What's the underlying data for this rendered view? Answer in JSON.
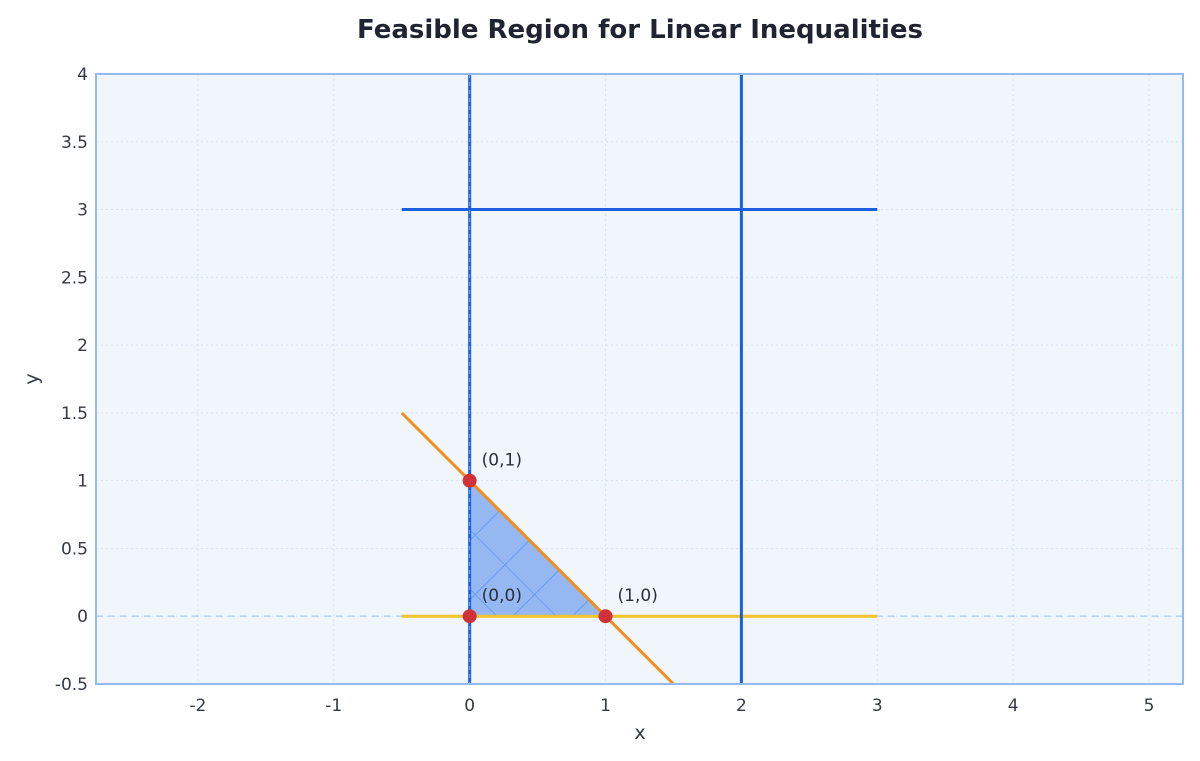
{
  "chart_data": {
    "type": "line",
    "title": "Feasible Region for Linear Inequalities",
    "xlabel": "x",
    "ylabel": "y",
    "xlim": [
      -2.75,
      5.25
    ],
    "ylim": [
      -0.5,
      4
    ],
    "x_ticks": [
      "-2",
      "-1",
      "0",
      "1",
      "2",
      "3",
      "4",
      "5"
    ],
    "y_ticks": [
      "-0.5",
      "0",
      "0.5",
      "1",
      "1.5",
      "2",
      "2.5",
      "3",
      "3.5",
      "4"
    ],
    "grid": true,
    "series": [
      {
        "x": [
          -0.5,
          1.5
        ],
        "y": [
          1.5,
          -0.5
        ],
        "color": "#f28e1c"
      },
      {
        "x": [
          -0.5,
          3
        ],
        "y": [
          0,
          0
        ],
        "color": "#f2c22c"
      },
      {
        "x": [
          0,
          0
        ],
        "y": [
          -0.5,
          4
        ],
        "color": "#1a5fe0"
      },
      {
        "x": [
          2,
          2
        ],
        "y": [
          -0.5,
          4
        ],
        "color": "#1a5fe0"
      },
      {
        "x": [
          -0.5,
          3
        ],
        "y": [
          3,
          3
        ],
        "color": "#1a5fe0"
      }
    ],
    "feasible_region": {
      "vertices": [
        [
          0,
          0
        ],
        [
          1,
          0
        ],
        [
          0,
          1
        ]
      ],
      "fill": "#8fb4f2",
      "hatch": "#5a8ff0"
    },
    "points": [
      {
        "x": 0,
        "y": 1,
        "label": "(0,1)"
      },
      {
        "x": 0,
        "y": 0,
        "label": "(0,0)"
      },
      {
        "x": 1,
        "y": 0,
        "label": "(1,0)"
      }
    ],
    "colors": {
      "plot_bg": "#f1f6fd",
      "plot_border": "#94baf0",
      "point": "#d0323a",
      "reference": "#b8d2f0"
    }
  }
}
